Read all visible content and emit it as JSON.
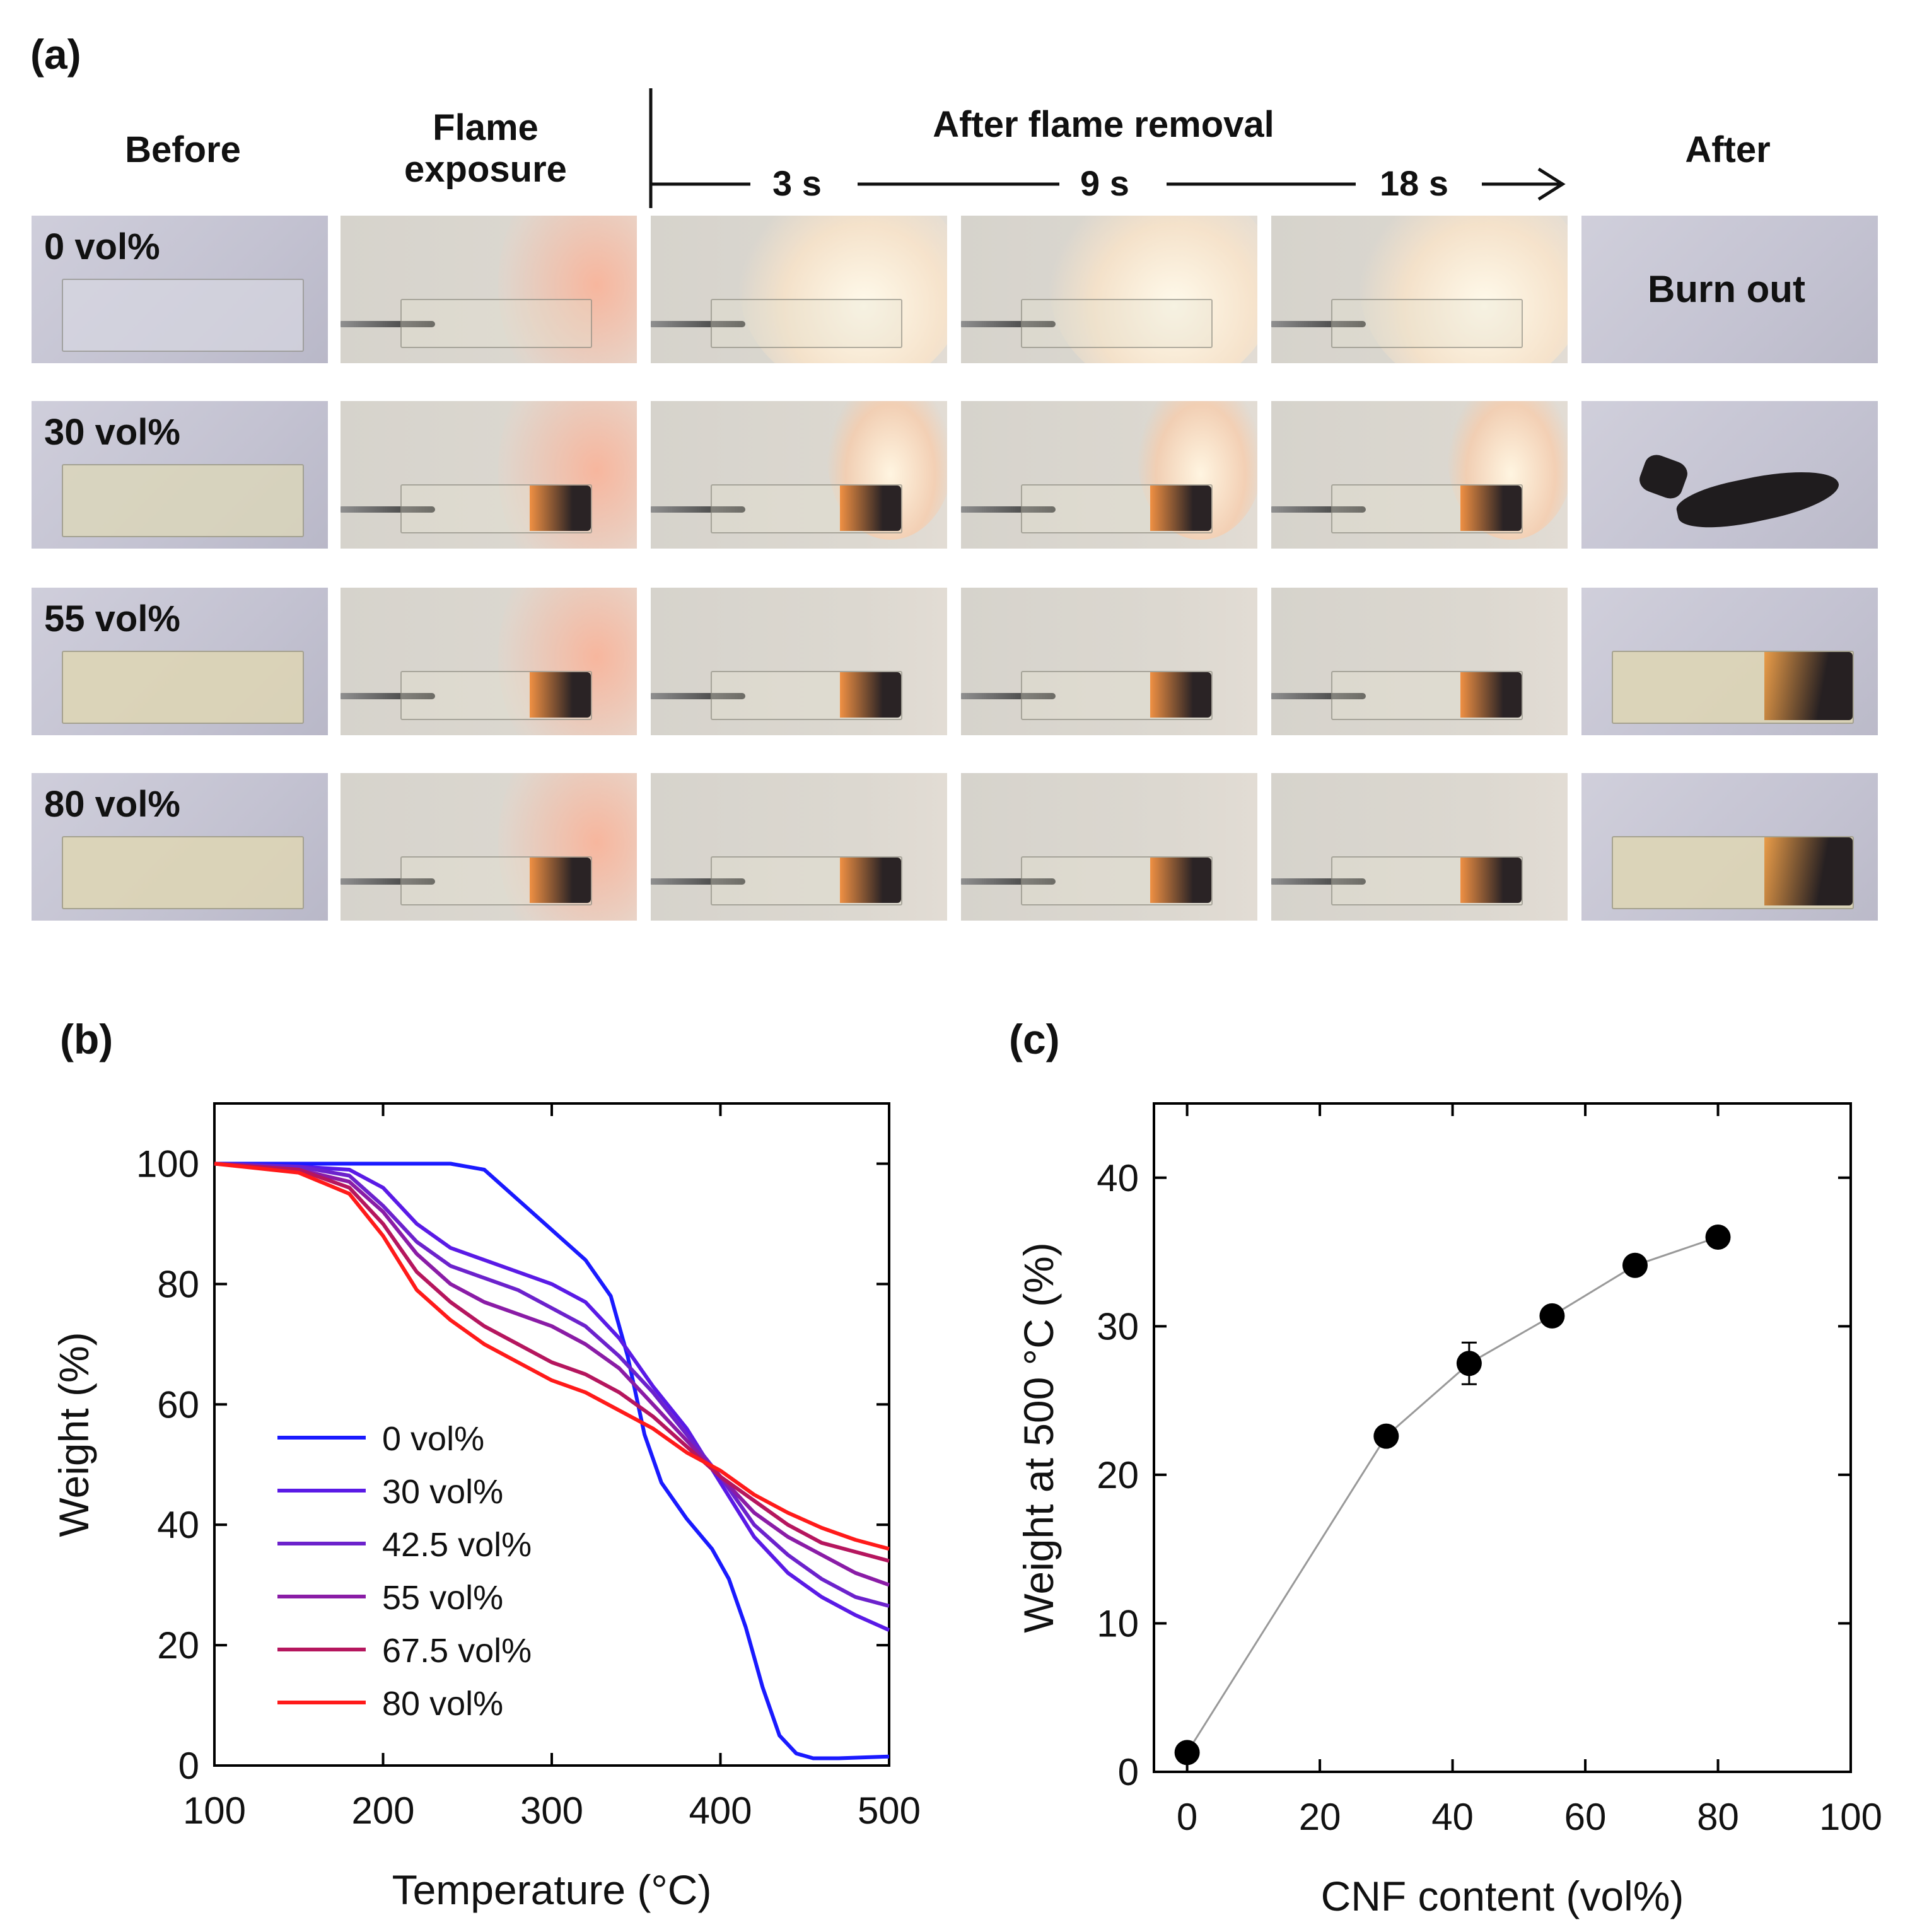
{
  "panel_a": {
    "label": "(a)",
    "col_before": "Before",
    "col_flame": [
      "Flame",
      "exposure"
    ],
    "col_after_removal": "After flame removal",
    "col_after": "After",
    "times": [
      "3 s",
      "9 s",
      "18 s"
    ],
    "rows": [
      "0 vol%",
      "30 vol%",
      "55 vol%",
      "80 vol%"
    ],
    "burn_out": "Burn out"
  },
  "panel_b": {
    "label": "(b)"
  },
  "panel_c": {
    "label": "(c)"
  },
  "chart_data": [
    {
      "type": "line",
      "xlabel": "Temperature (°C)",
      "ylabel": "Weight (%)",
      "xlim": [
        100,
        500
      ],
      "ylim": [
        0,
        110
      ],
      "xticks": [
        100,
        200,
        300,
        400,
        500
      ],
      "yticks": [
        0,
        20,
        40,
        60,
        80,
        100
      ],
      "legend_position": "middle-left",
      "series": [
        {
          "name": "0 vol%",
          "color": "#1a1aff",
          "x": [
            100,
            150,
            200,
            240,
            260,
            280,
            300,
            320,
            335,
            345,
            355,
            365,
            380,
            395,
            405,
            415,
            425,
            435,
            445,
            455,
            470,
            500
          ],
          "y": [
            100,
            100,
            100,
            100,
            99,
            94,
            89,
            84,
            78,
            68,
            55,
            47,
            41,
            36,
            31,
            23,
            13,
            5,
            2,
            1.2,
            1.2,
            1.5
          ]
        },
        {
          "name": "30 vol%",
          "color": "#5a1ae6",
          "x": [
            100,
            150,
            180,
            200,
            220,
            240,
            260,
            280,
            300,
            320,
            340,
            360,
            380,
            400,
            420,
            440,
            460,
            480,
            500
          ],
          "y": [
            100,
            99.5,
            99,
            96,
            90,
            86,
            84,
            82,
            80,
            77,
            71,
            63,
            56,
            47,
            38,
            32,
            28,
            25,
            22.5
          ]
        },
        {
          "name": "42.5 vol%",
          "color": "#6c22cc",
          "x": [
            100,
            150,
            180,
            200,
            220,
            240,
            260,
            280,
            300,
            320,
            340,
            360,
            380,
            400,
            420,
            440,
            460,
            480,
            500
          ],
          "y": [
            100,
            99.5,
            98,
            93,
            87,
            83,
            81,
            79,
            76,
            73,
            68,
            62,
            55,
            48,
            40,
            35,
            31,
            28,
            26.5
          ]
        },
        {
          "name": "55 vol%",
          "color": "#8a1ca6",
          "x": [
            100,
            150,
            180,
            200,
            220,
            240,
            260,
            280,
            300,
            320,
            340,
            360,
            380,
            400,
            420,
            440,
            460,
            480,
            500
          ],
          "y": [
            100,
            99,
            97,
            92,
            85,
            80,
            77,
            75,
            73,
            70,
            66,
            60,
            54,
            48,
            42,
            38,
            35,
            32,
            30
          ]
        },
        {
          "name": "67.5 vol%",
          "color": "#b5165e",
          "x": [
            100,
            150,
            180,
            200,
            220,
            240,
            260,
            280,
            300,
            320,
            340,
            360,
            380,
            400,
            420,
            440,
            460,
            480,
            500
          ],
          "y": [
            100,
            99,
            96,
            90,
            82,
            77,
            73,
            70,
            67,
            65,
            62,
            58,
            53,
            48,
            44,
            40,
            37,
            35.5,
            34
          ]
        },
        {
          "name": "80 vol%",
          "color": "#ff1a1a",
          "x": [
            100,
            150,
            180,
            200,
            220,
            240,
            260,
            280,
            300,
            320,
            340,
            360,
            380,
            400,
            420,
            440,
            460,
            480,
            500
          ],
          "y": [
            100,
            98.5,
            95,
            88,
            79,
            74,
            70,
            67,
            64,
            62,
            59,
            56,
            52,
            49,
            45,
            42,
            39.5,
            37.5,
            36
          ]
        }
      ]
    },
    {
      "type": "scatter",
      "xlabel": "CNF content (vol%)",
      "ylabel": "Weight at 500 °C (%)",
      "xlim": [
        -5,
        100
      ],
      "ylim": [
        0,
        45
      ],
      "xticks": [
        0,
        20,
        40,
        60,
        80,
        100
      ],
      "yticks": [
        0,
        10,
        20,
        30,
        40
      ],
      "x": [
        0,
        30,
        42.5,
        55,
        67.5,
        80
      ],
      "y": [
        1.3,
        22.6,
        27.5,
        30.7,
        34.1,
        36.0
      ],
      "yerr": [
        0.3,
        0.4,
        1.4,
        0.4,
        0.4,
        0.6
      ],
      "line_color": "#999999",
      "marker_color": "#000000"
    }
  ]
}
